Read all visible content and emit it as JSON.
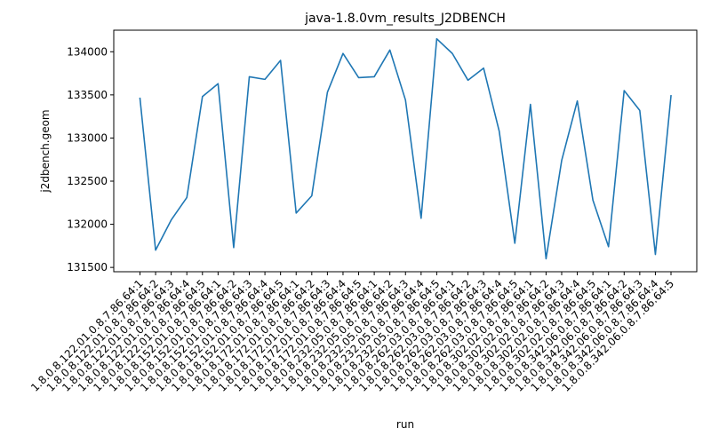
{
  "chart_data": {
    "type": "line",
    "title": "java-1.8.0vm_results_J2DBENCH",
    "xlabel": "run",
    "ylabel": "j2dbench.geom",
    "ylim": [
      131450,
      134250
    ],
    "yticks": [
      131500,
      132000,
      132500,
      133000,
      133500,
      134000
    ],
    "grid": false,
    "legend": "none",
    "series_color": "#1f77b4",
    "categories": [
      "1.8.0.8.122.01.0.8.7.86.64:1",
      "1.8.0.8.122.01.0.8.7.86.64:2",
      "1.8.0.8.122.01.0.8.7.86.64:3",
      "1.8.0.8.122.01.0.8.7.86.64:4",
      "1.8.0.8.122.01.0.8.7.86.64:5",
      "1.8.0.8.152.01.0.8.7.86.64:1",
      "1.8.0.8.152.01.0.8.7.86.64:2",
      "1.8.0.8.152.01.0.8.7.86.64:3",
      "1.8.0.8.152.01.0.8.7.86.64:4",
      "1.8.0.8.152.01.0.8.7.86.64:5",
      "1.8.0.8.172.01.0.8.7.86.64:1",
      "1.8.0.8.172.01.0.8.7.86.64:2",
      "1.8.0.8.172.01.0.8.7.86.64:3",
      "1.8.0.8.172.01.0.8.7.86.64:4",
      "1.8.0.8.172.01.0.8.7.86.64:5",
      "1.8.0.8.232.05.0.8.7.86.64:1",
      "1.8.0.8.232.05.0.8.7.86.64:2",
      "1.8.0.8.232.05.0.8.7.86.64:3",
      "1.8.0.8.232.05.0.8.7.86.64:4",
      "1.8.0.8.232.05.0.8.7.86.64:5",
      "1.8.0.8.262.03.0.8.7.86.64:1",
      "1.8.0.8.262.03.0.8.7.86.64:2",
      "1.8.0.8.262.03.0.8.7.86.64:3",
      "1.8.0.8.262.03.0.8.7.86.64:4",
      "1.8.0.8.262.03.0.8.7.86.64:5",
      "1.8.0.8.302.02.0.8.7.86.64:1",
      "1.8.0.8.302.02.0.8.7.86.64:2",
      "1.8.0.8.302.02.0.8.7.86.64:3",
      "1.8.0.8.302.02.0.8.7.86.64:4",
      "1.8.0.8.302.02.0.8.7.86.64:5",
      "1.8.0.8.342.06.0.8.7.86.64:1",
      "1.8.0.8.342.06.0.8.7.86.64:2",
      "1.8.0.8.342.06.0.8.7.86.64:3",
      "1.8.0.8.342.06.0.8.7.86.64:4",
      "1.8.0.8.342.06.0.8.7.86.64:5"
    ],
    "values": [
      133460,
      131700,
      132050,
      132310,
      133480,
      133630,
      131730,
      133710,
      133680,
      133900,
      132130,
      132330,
      133530,
      133980,
      133700,
      133710,
      134020,
      133440,
      132070,
      134150,
      133980,
      133670,
      133810,
      133080,
      131780,
      133390,
      131600,
      132740,
      133430,
      132280,
      131740,
      133550,
      133320,
      131650,
      133490
    ]
  }
}
